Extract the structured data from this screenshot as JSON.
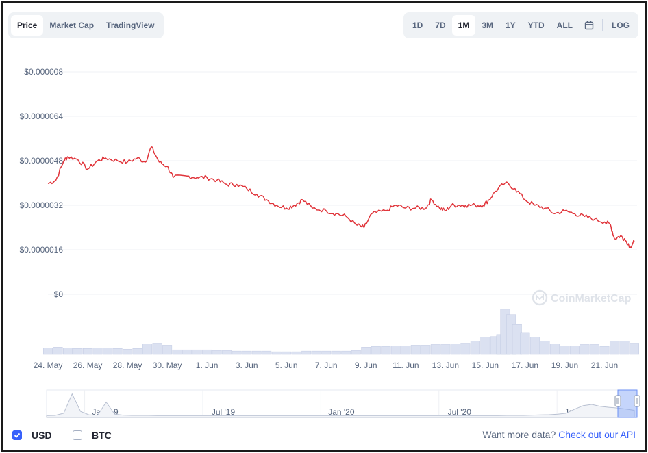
{
  "tabs": [
    {
      "label": "Price",
      "active": true
    },
    {
      "label": "Market Cap",
      "active": false
    },
    {
      "label": "TradingView",
      "active": false
    }
  ],
  "ranges": [
    {
      "label": "1D",
      "active": false
    },
    {
      "label": "7D",
      "active": false
    },
    {
      "label": "1M",
      "active": true
    },
    {
      "label": "3M",
      "active": false
    },
    {
      "label": "1Y",
      "active": false
    },
    {
      "label": "YTD",
      "active": false
    },
    {
      "label": "ALL",
      "active": false
    }
  ],
  "calendar_icon": "calendar-icon",
  "log_label": "LOG",
  "watermark": "CoinMarketCap",
  "colors": {
    "line": "#e0343a",
    "volume_fill": "#dbe1f1",
    "volume_stroke": "#c3cbe3",
    "grid": "#eff2f5",
    "axis_text": "#58667e",
    "accent": "#3861fb"
  },
  "chart_data": [
    {
      "type": "line",
      "title": "",
      "ylabel": "",
      "xlabel": "",
      "ylim": [
        0,
        8e-06
      ],
      "y_ticks": [
        "$0",
        "$0.0000016",
        "$0.0000032",
        "$0.0000048",
        "$0.0000064",
        "$0.000008"
      ],
      "x_ticks": [
        "24. May",
        "26. May",
        "28. May",
        "30. May",
        "1. Jun",
        "3. Jun",
        "5. Jun",
        "7. Jun",
        "9. Jun",
        "11. Jun",
        "13. Jun",
        "15. Jun",
        "17. Jun",
        "19. Jun",
        "21. Jun"
      ],
      "x_days": [
        0,
        2,
        4,
        6,
        8,
        10,
        12,
        14,
        16,
        18,
        20,
        22,
        24,
        26,
        28
      ],
      "x_range_days": [
        0,
        29.5
      ],
      "grid": true,
      "series": [
        {
          "x": [
            0,
            0.4,
            0.8,
            1,
            1.5,
            2,
            2.5,
            2.9,
            3.5,
            4,
            4.5,
            4.9,
            5.2,
            5.6,
            6,
            6.3,
            7,
            7.5,
            8,
            8.5,
            9,
            9.5,
            10,
            10.5,
            11,
            11.5,
            12,
            12.4,
            12.8,
            13.3,
            14,
            14.5,
            15,
            15.5,
            15.9,
            16.3,
            17,
            17.5,
            18,
            18.5,
            19,
            19.3,
            19.7,
            20,
            20.3,
            20.7,
            21,
            21.5,
            21.9,
            22.2,
            22.5,
            23,
            23.5,
            24,
            24.5,
            25,
            25.5,
            26,
            26.5,
            27,
            27.5,
            28,
            28.3,
            28.5,
            28.8,
            29,
            29.3,
            29.5
          ],
          "values": [
            3.98e-06,
            4.1e-06,
            4.8e-06,
            4.95e-06,
            4.85e-06,
            4.5e-06,
            4.8e-06,
            4.9e-06,
            4.8e-06,
            4.75e-06,
            4.9e-06,
            4.75e-06,
            5.3e-06,
            4.75e-06,
            4.6e-06,
            4.2e-06,
            4.25e-06,
            4.2e-06,
            4.2e-06,
            4.1e-06,
            3.95e-06,
            3.95e-06,
            3.8e-06,
            3.6e-06,
            3.4e-06,
            3.2e-06,
            3.1e-06,
            3.2e-06,
            3.4e-06,
            3.1e-06,
            3e-06,
            2.9e-06,
            2.8e-06,
            2.5e-06,
            2.4e-06,
            2.9e-06,
            3e-06,
            3.2e-06,
            3.1e-06,
            3.1e-06,
            3.1e-06,
            3.4e-06,
            3.1e-06,
            3e-06,
            3.2e-06,
            3.2e-06,
            3.2e-06,
            3.2e-06,
            3.2e-06,
            3.4e-06,
            3.7e-06,
            4e-06,
            3.8e-06,
            3.4e-06,
            3.2e-06,
            3.1e-06,
            2.9e-06,
            3e-06,
            2.9e-06,
            2.8e-06,
            2.7e-06,
            2.6e-06,
            2.5e-06,
            2e-06,
            2.1e-06,
            2e-06,
            1.7e-06,
            1.9e-06
          ]
        }
      ]
    },
    {
      "type": "bar",
      "title": "",
      "x_days": [
        0,
        0.5,
        1,
        1.5,
        2,
        2.5,
        3,
        3.5,
        4,
        4.5,
        5,
        5.5,
        6,
        6.5,
        7,
        7.5,
        8,
        8.5,
        9,
        9.5,
        10,
        10.5,
        11,
        11.5,
        12,
        12.5,
        13,
        13.5,
        14,
        14.5,
        15,
        15.5,
        16,
        16.5,
        17,
        17.5,
        18,
        18.5,
        19,
        19.5,
        20,
        20.5,
        21,
        21.5,
        22,
        22.5,
        22.8,
        23,
        23.3,
        23.6,
        24,
        24.5,
        25,
        25.5,
        26,
        26.5,
        27,
        27.5,
        28,
        28.5,
        29,
        29.5
      ],
      "values": [
        10,
        11,
        10,
        9,
        9,
        10,
        10,
        9,
        8,
        9,
        16,
        17,
        14,
        7,
        7,
        7,
        7,
        6,
        6,
        5,
        5,
        5,
        5,
        4,
        4,
        4,
        5,
        5,
        5,
        5,
        5,
        6,
        11,
        12,
        12,
        13,
        13,
        14,
        14,
        15,
        15,
        16,
        17,
        20,
        26,
        27,
        30,
        68,
        60,
        45,
        33,
        26,
        20,
        16,
        13,
        13,
        15,
        15,
        12,
        20,
        20,
        17
      ],
      "ylim": [
        0,
        72
      ]
    },
    {
      "type": "area",
      "title": "",
      "x_ticks": [
        "Jan '19",
        "Jul '19",
        "Jan '20",
        "Jul '20",
        "Jan '21"
      ],
      "x_tick_pos": [
        0.09,
        0.29,
        0.49,
        0.69,
        0.89
      ],
      "values": [
        0.02,
        0.03,
        0.12,
        0.95,
        0.2,
        0.05,
        0.04,
        0.6,
        0.08,
        0.04,
        0.03,
        0.03,
        0.03,
        0.02,
        0.02,
        0.02,
        0.02,
        0.02,
        0.02,
        0.02,
        0.02,
        0.02,
        0.02,
        0.02,
        0.02,
        0.02,
        0.02,
        0.02,
        0.02,
        0.02,
        0.02,
        0.02,
        0.02,
        0.02,
        0.02,
        0.02,
        0.02,
        0.02,
        0.02,
        0.02,
        0.02,
        0.02,
        0.02,
        0.02,
        0.02,
        0.02,
        0.02,
        0.02,
        0.02,
        0.02,
        0.02,
        0.02,
        0.02,
        0.02,
        0.03,
        0.03,
        0.03,
        0.04,
        0.05,
        0.06,
        0.08,
        0.12,
        0.3,
        0.45,
        0.5,
        0.42,
        0.38,
        0.35,
        0.3,
        0.25
      ],
      "ylim": [
        0,
        1
      ],
      "selected_range_label": "1M"
    }
  ],
  "currency": [
    {
      "label": "USD",
      "checked": true
    },
    {
      "label": "BTC",
      "checked": false
    }
  ],
  "footer": {
    "text": "Want more data?",
    "link": "Check out our API"
  }
}
